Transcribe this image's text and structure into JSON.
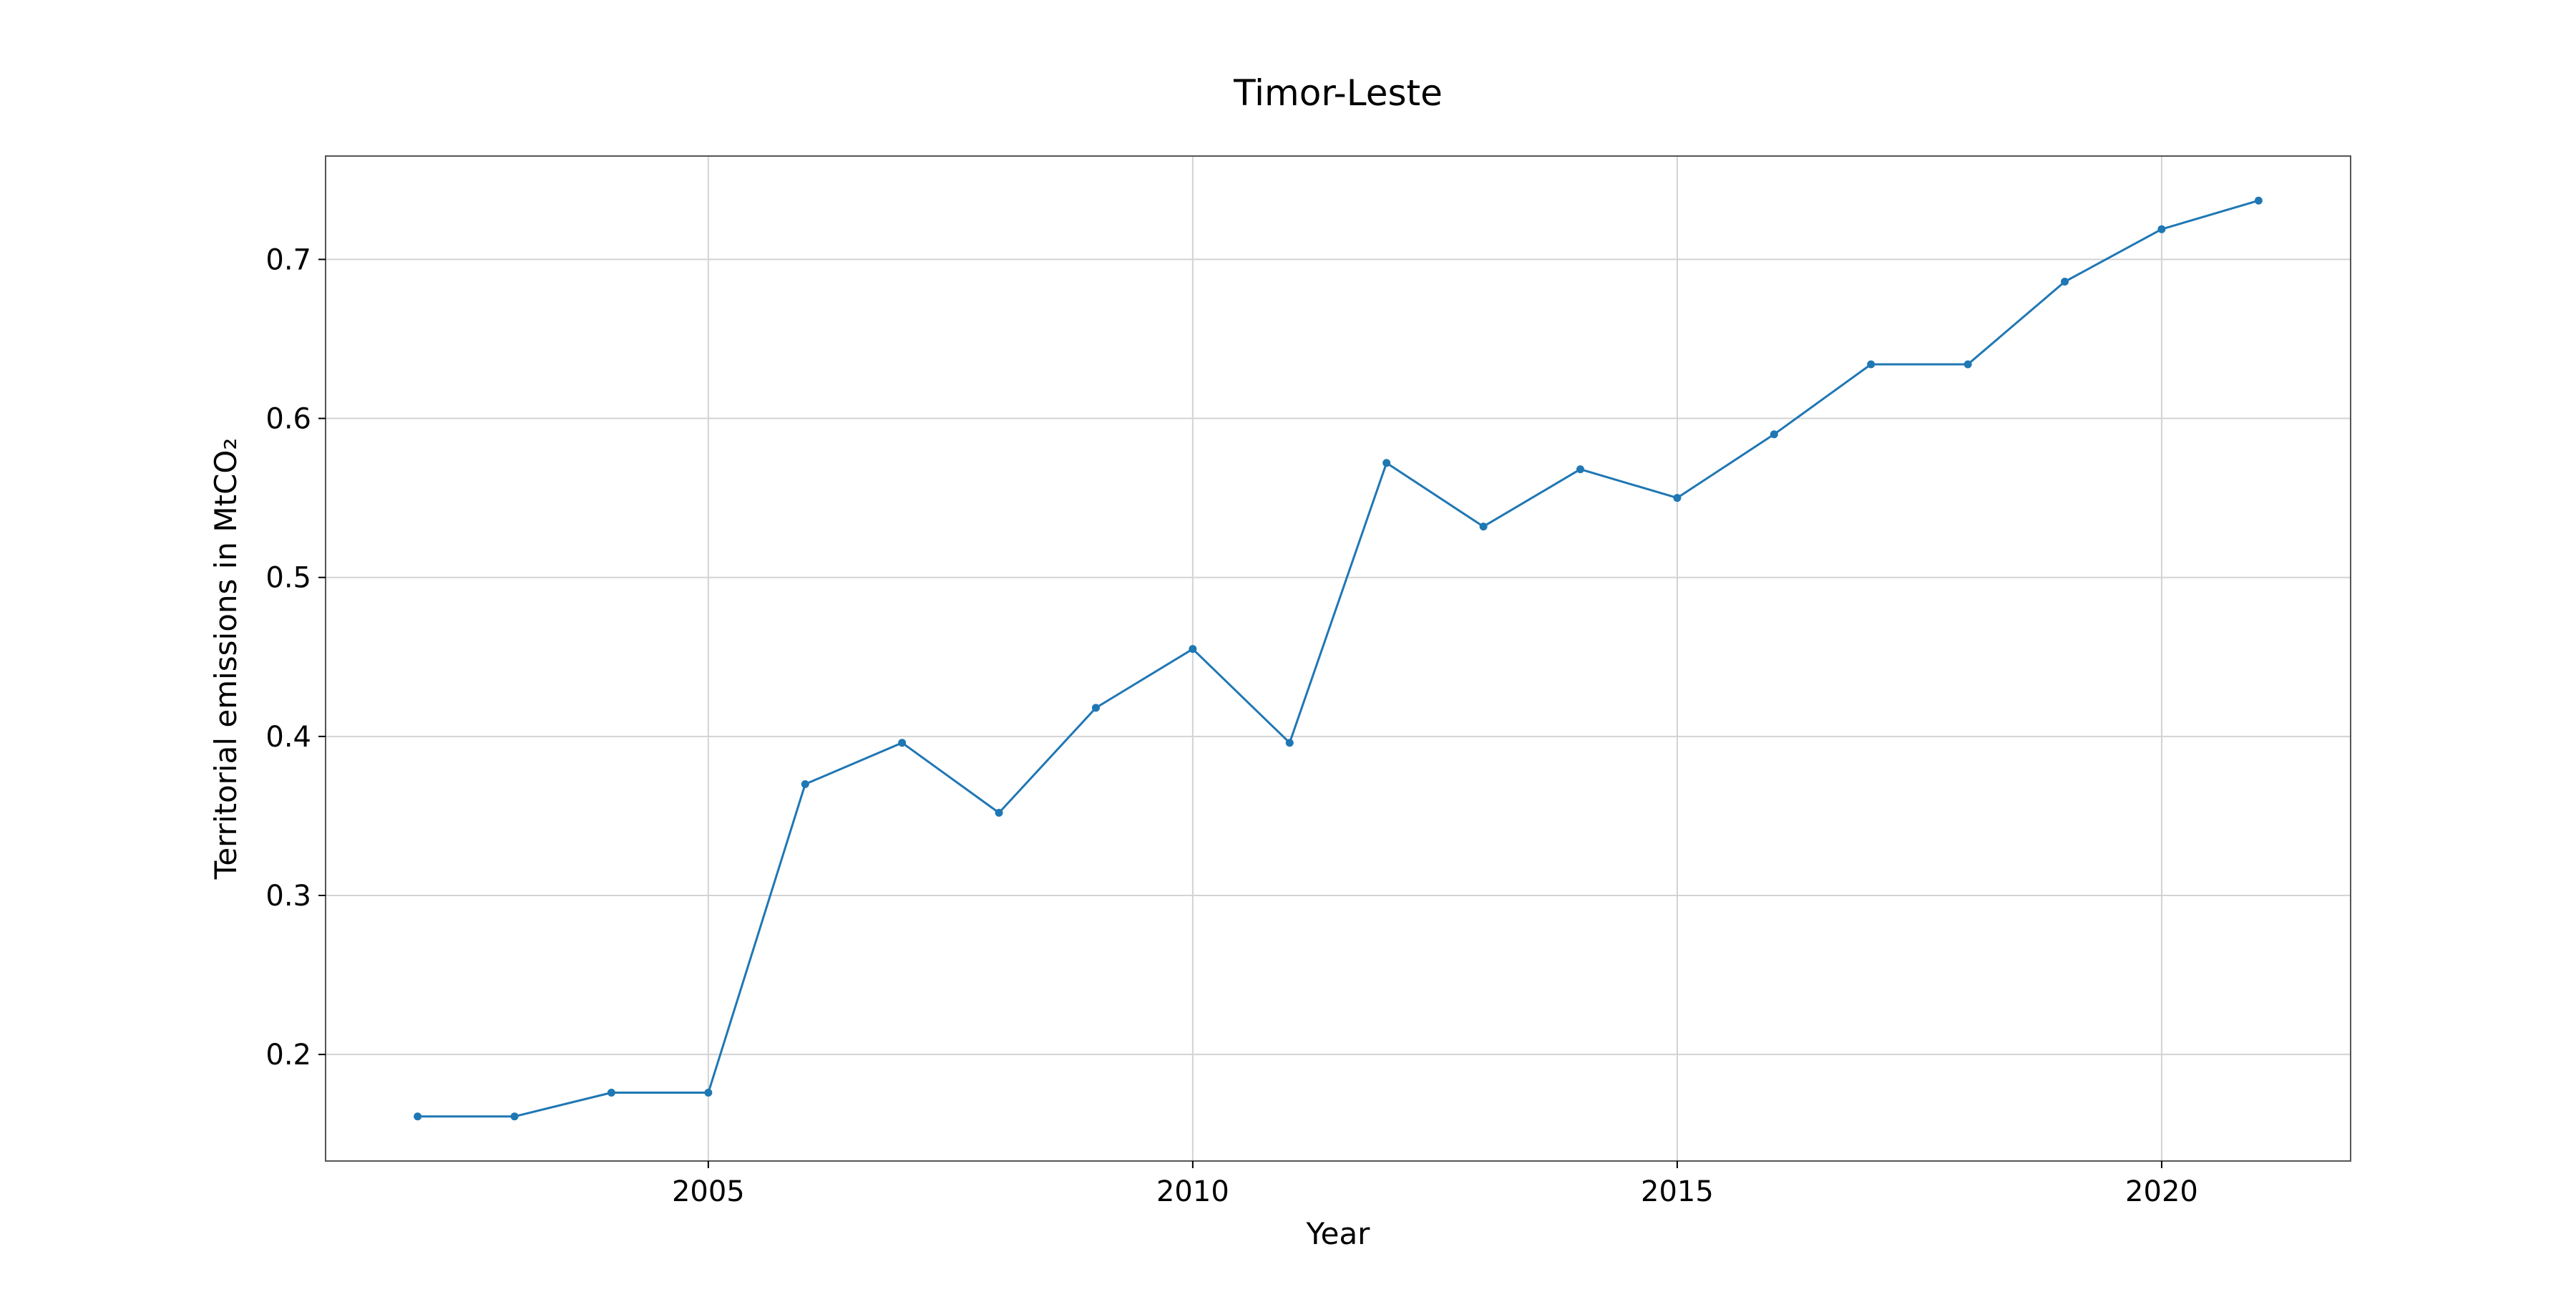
{
  "chart_data": {
    "type": "line",
    "title": "Timor-Leste",
    "xlabel": "Year",
    "ylabel": "Territorial emissions in MtCO₂",
    "x": [
      2002,
      2003,
      2004,
      2005,
      2006,
      2007,
      2008,
      2009,
      2010,
      2011,
      2012,
      2013,
      2014,
      2015,
      2016,
      2017,
      2018,
      2019,
      2020,
      2021
    ],
    "series": [
      {
        "values": [
          0.161,
          0.161,
          0.176,
          0.176,
          0.37,
          0.396,
          0.352,
          0.418,
          0.455,
          0.396,
          0.572,
          0.532,
          0.568,
          0.55,
          0.59,
          0.634,
          0.634,
          0.686,
          0.719,
          0.737
        ],
        "color": "#1f77b4"
      }
    ],
    "xlim": [
      2001.05,
      2021.95
    ],
    "ylim": [
      0.133,
      0.765
    ],
    "xticks": [
      2005,
      2010,
      2015,
      2020
    ],
    "yticks": [
      0.2,
      0.3,
      0.4,
      0.5,
      0.6,
      0.7
    ],
    "ytick_labels": [
      "0.2",
      "0.3",
      "0.4",
      "0.5",
      "0.6",
      "0.7"
    ],
    "grid": true,
    "legend": "none"
  }
}
